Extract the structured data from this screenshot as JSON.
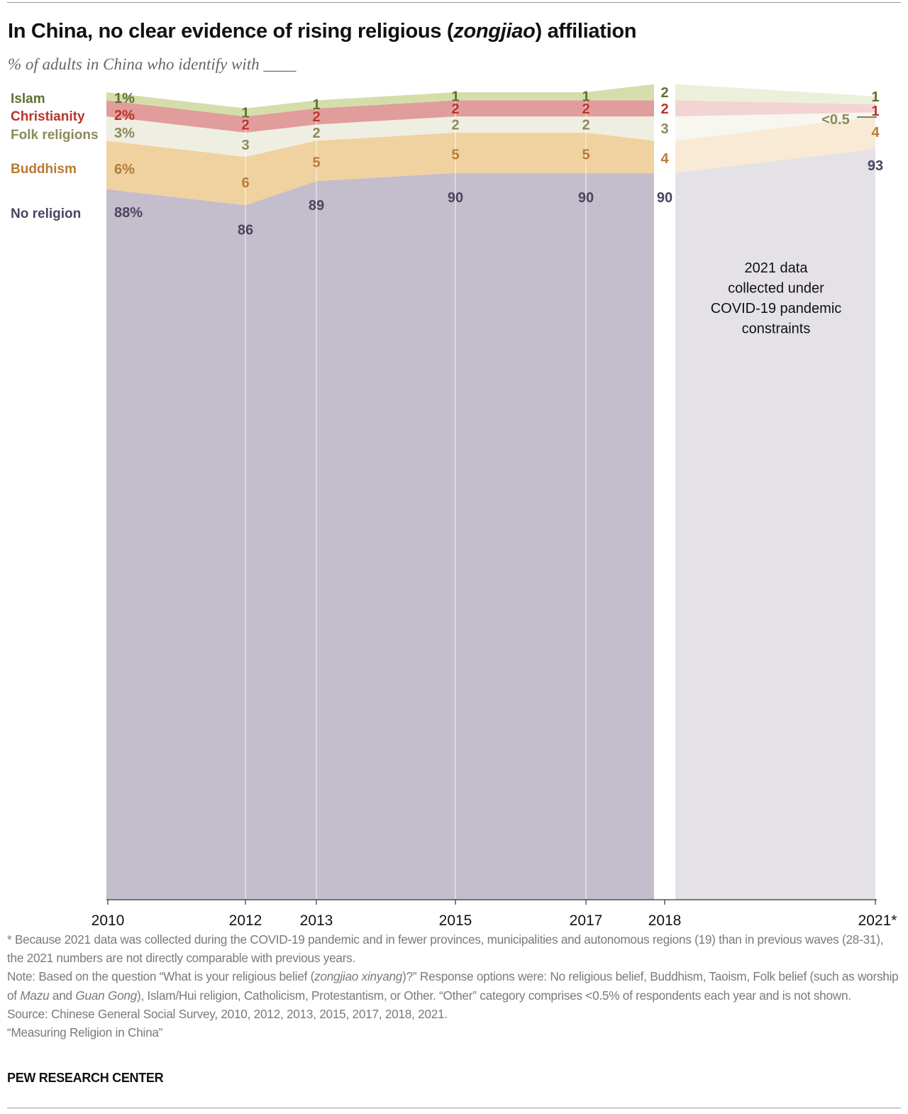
{
  "title_parts": {
    "before": "In China, no clear evidence of rising religious (",
    "italic": "zongjiao",
    "after": ") affiliation"
  },
  "subtitle": "% of adults in China who identify with ____",
  "annotation": [
    "2021 data",
    "collected under",
    "COVID-19 pandemic",
    "constraints"
  ],
  "chart_data": {
    "type": "area",
    "stacked": true,
    "title": "In China, no clear evidence of rising religious (zongjiao) affiliation",
    "subtitle": "% of adults in China who identify with ____",
    "x": [
      2010,
      2012,
      2013,
      2015,
      2017,
      2018,
      2021
    ],
    "x_tick_labels": [
      "2010",
      "2012",
      "2013",
      "2015",
      "2017",
      "2018",
      "2021*"
    ],
    "ylim": [
      0,
      100
    ],
    "grid": "vertical lines at survey years",
    "legend": "left labels",
    "series": [
      {
        "name": "No religion",
        "values": [
          88,
          86,
          89,
          90,
          90,
          90,
          93
        ],
        "labels": [
          "88%",
          "86",
          "89",
          "90",
          "90",
          "90",
          "93"
        ],
        "color": "#c4bdcb",
        "color_2021": "#e4e1e7",
        "text_color": "#4a4560"
      },
      {
        "name": "Buddhism",
        "values": [
          6,
          6,
          5,
          5,
          5,
          4,
          4
        ],
        "labels": [
          "6%",
          "6",
          "5",
          "5",
          "5",
          "4",
          "4"
        ],
        "color": "#efd29f",
        "color_2021": "#f8ead5",
        "text_color": "#b87a35"
      },
      {
        "name": "Folk religions",
        "values": [
          3,
          3,
          2,
          2,
          2,
          3,
          0.5
        ],
        "labels": [
          "3%",
          "3",
          "2",
          "2",
          "2",
          "3",
          "<0.5"
        ],
        "color": "#efeee2",
        "color_2021": "#f7f7f0",
        "text_color": "#8a8a5a"
      },
      {
        "name": "Christianity",
        "values": [
          2,
          2,
          2,
          2,
          2,
          2,
          1
        ],
        "labels": [
          "2%",
          "2",
          "2",
          "2",
          "2",
          "2",
          "1"
        ],
        "color": "#e19d9b",
        "color_2021": "#f3d4d3",
        "text_color": "#b9352b"
      },
      {
        "name": "Islam",
        "values": [
          1,
          1,
          1,
          1,
          1,
          2,
          1
        ],
        "labels": [
          "1%",
          "1",
          "1",
          "1",
          "1",
          "2",
          "1"
        ],
        "color": "#d5deaa",
        "color_2021": "#ecefda",
        "text_color": "#5e7032"
      }
    ]
  },
  "notes": {
    "asterisk": "* Because 2021 data was collected during the COVID-19 pandemic and in fewer provinces, municipalities and autonomous regions (19) than in previous waves (28-31), the 2021 numbers are not directly comparable with previous years.",
    "note_a": "Note: Based on the question “What is your religious belief (",
    "note_b": "zongjiao xinyang",
    "note_c": ")?” Response options were: No religious belief, Buddhism, Taoism, Folk belief (such as worship of ",
    "note_d": "Mazu",
    "note_e": " and ",
    "note_f": "Guan Gong",
    "note_g": "), Islam/Hui religion, Catholicism, Protestantism, or Other. “Other” category comprises <0.5% of respondents each year and is not shown.",
    "source": "Source: Chinese General Social Survey, 2010, 2012, 2013, 2015, 2017, 2018, 2021.",
    "report": "“Measuring Religion in China”"
  },
  "brand": "PEW RESEARCH CENTER"
}
